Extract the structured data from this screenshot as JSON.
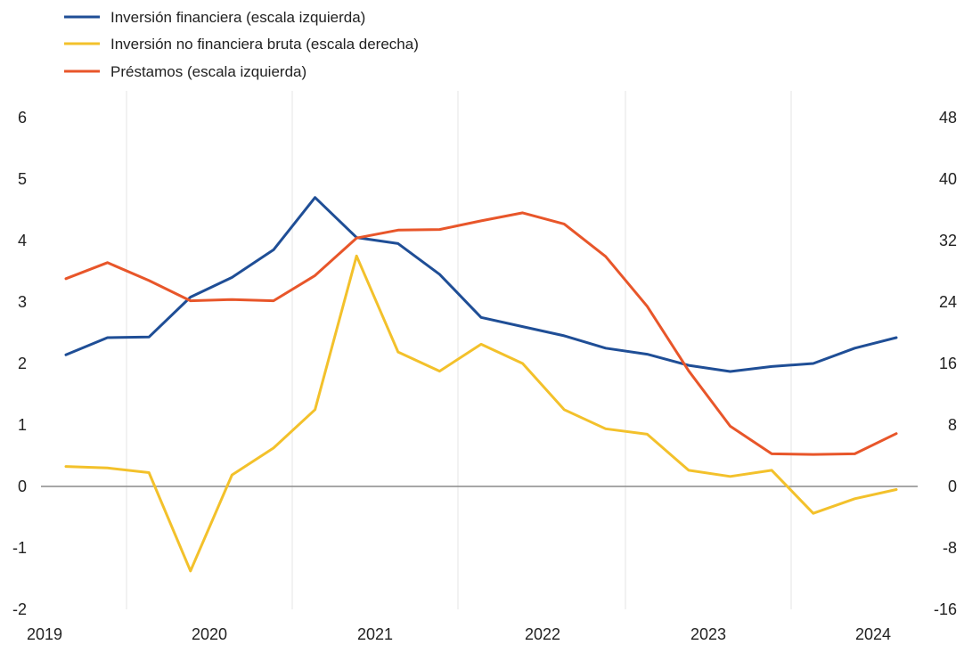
{
  "chart_data": {
    "type": "line",
    "title": "",
    "x_tick_labels": [
      "2019",
      "2020",
      "2021",
      "2022",
      "2023",
      "2024"
    ],
    "x": [
      "2019-Q1",
      "2019-Q2",
      "2019-Q3",
      "2019-Q4",
      "2020-Q1",
      "2020-Q2",
      "2020-Q3",
      "2020-Q4",
      "2021-Q1",
      "2021-Q2",
      "2021-Q3",
      "2021-Q4",
      "2022-Q1",
      "2022-Q2",
      "2022-Q3",
      "2022-Q4",
      "2023-Q1",
      "2023-Q2",
      "2023-Q3",
      "2023-Q4",
      "2024-Q1"
    ],
    "y_left": {
      "ylim": [
        -2,
        6
      ],
      "ticks": [
        "6",
        "5",
        "4",
        "3",
        "2",
        "1",
        "0",
        "-1",
        "-2"
      ]
    },
    "y_right": {
      "ylim": [
        -16,
        48
      ],
      "ticks": [
        "48",
        "40",
        "32",
        "24",
        "16",
        "8",
        "0",
        "-8",
        "-16"
      ]
    },
    "grid": "vertical",
    "legend_position": "top-left",
    "series": [
      {
        "name": "Inversión financiera (escala izquierda)",
        "axis": "left",
        "color": "#1f4e96",
        "values": [
          2.14,
          2.42,
          2.43,
          3.08,
          3.4,
          3.85,
          4.7,
          4.05,
          3.95,
          3.45,
          2.75,
          2.6,
          2.45,
          2.25,
          2.15,
          1.97,
          1.87,
          1.95,
          2.0,
          2.25,
          2.42
        ]
      },
      {
        "name": "Inversión no financiera bruta (escala derecha)",
        "axis": "right",
        "color": "#f3c12b",
        "values": [
          2.6,
          2.4,
          1.8,
          -11,
          1.5,
          5,
          10,
          30,
          17.5,
          15,
          18.5,
          16,
          10,
          7.5,
          6.8,
          2.1,
          1.3,
          2.1,
          -3.5,
          -1.6,
          -0.4
        ]
      },
      {
        "name": "Préstamos (escala izquierda)",
        "axis": "left",
        "color": "#e8562a",
        "values": [
          3.38,
          3.64,
          3.35,
          3.02,
          3.04,
          3.02,
          3.43,
          4.04,
          4.17,
          4.18,
          4.32,
          4.45,
          4.27,
          3.74,
          2.93,
          1.88,
          0.98,
          0.53,
          0.52,
          0.53,
          0.86
        ]
      }
    ]
  }
}
